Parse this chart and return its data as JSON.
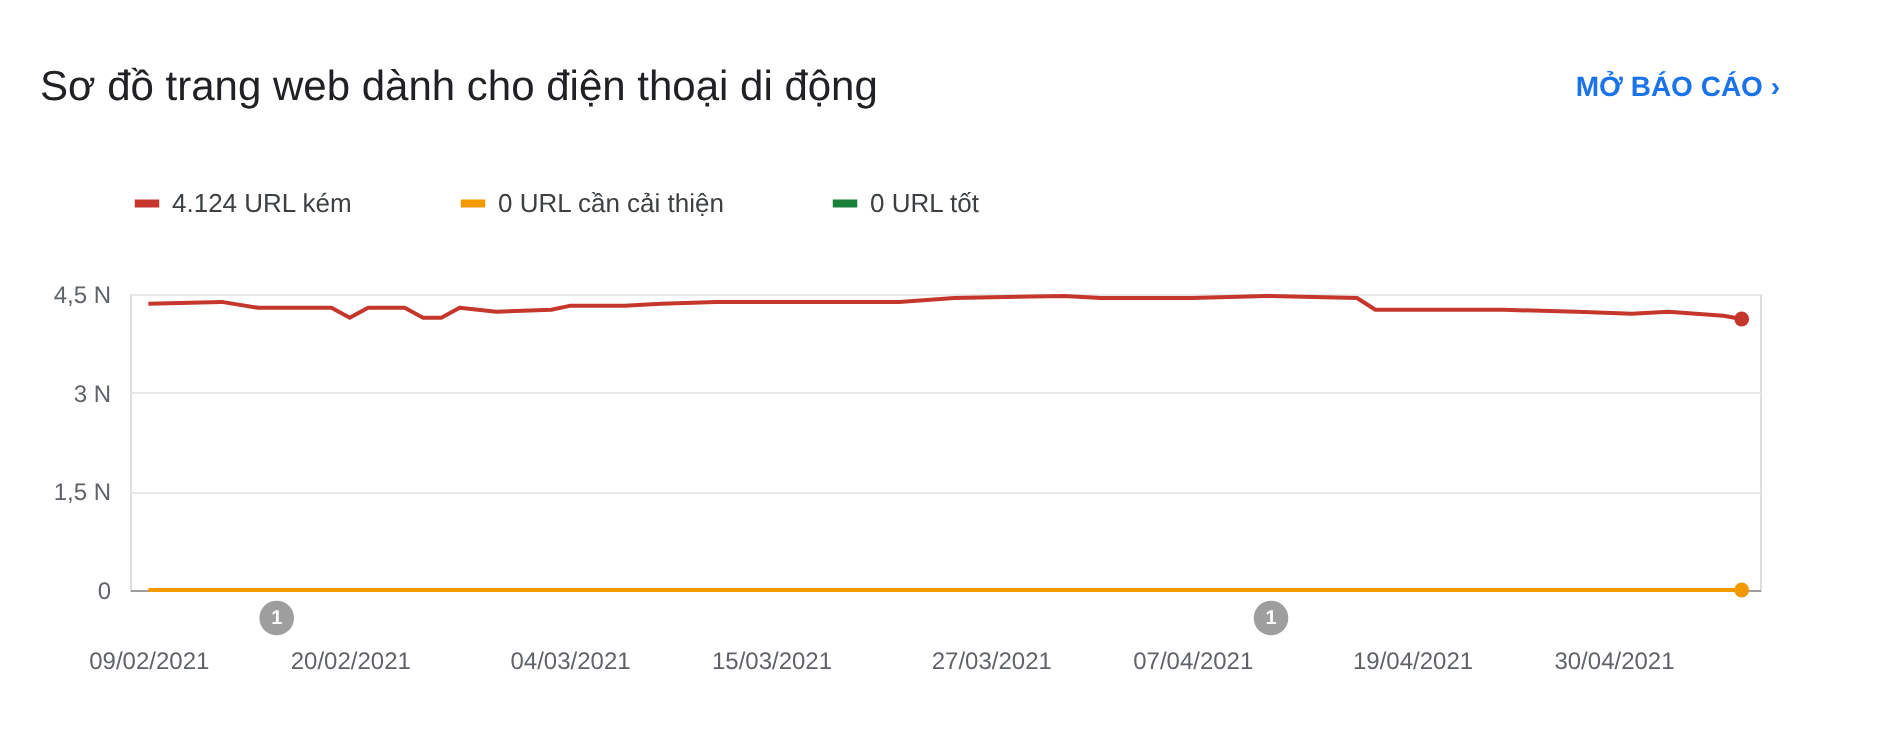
{
  "chart_data": {
    "type": "line",
    "title": "Sơ đồ trang web dành cho điện thoại di động",
    "annotations": [
      "1",
      "1",
      "MỞ BÁO CÁO ›"
    ],
    "x": [
      "2021-02-09",
      "2021-02-13",
      "2021-02-15",
      "2021-02-17",
      "2021-02-19",
      "2021-02-20",
      "2021-02-21",
      "2021-02-23",
      "2021-02-24",
      "2021-02-25",
      "2021-02-26",
      "2021-02-28",
      "2021-03-03",
      "2021-03-04",
      "2021-03-07",
      "2021-03-09",
      "2021-03-12",
      "2021-03-16",
      "2021-03-20",
      "2021-03-22",
      "2021-03-25",
      "2021-03-31",
      "2021-04-02",
      "2021-04-07",
      "2021-04-11",
      "2021-04-16",
      "2021-04-17",
      "2021-04-20",
      "2021-04-24",
      "2021-04-28",
      "2021-05-01",
      "2021-05-03",
      "2021-05-06",
      "2021-05-07"
    ],
    "series": [
      {
        "name": "4.124 URL kém",
        "color": "#c5372c",
        "values": [
          4.35,
          4.38,
          4.29,
          4.29,
          4.29,
          4.14,
          4.29,
          4.29,
          4.14,
          4.14,
          4.29,
          4.23,
          4.26,
          4.32,
          4.32,
          4.35,
          4.38,
          4.38,
          4.38,
          4.38,
          4.44,
          4.47,
          4.44,
          4.44,
          4.47,
          4.44,
          4.26,
          4.26,
          4.26,
          4.23,
          4.2,
          4.23,
          4.17,
          4.12
        ]
      },
      {
        "name": "0 URL cần cải thiện",
        "color": "#f29900",
        "values": [
          0,
          0,
          0,
          0,
          0,
          0,
          0,
          0,
          0,
          0,
          0,
          0,
          0,
          0,
          0,
          0,
          0,
          0,
          0,
          0,
          0,
          0,
          0,
          0,
          0,
          0,
          0,
          0,
          0,
          0,
          0,
          0,
          0,
          0
        ]
      },
      {
        "name": "0 URL tốt",
        "color": "#188038",
        "values": [
          null,
          null,
          null,
          null,
          null,
          null,
          null,
          null,
          null,
          null,
          null,
          null,
          null,
          null,
          null,
          null,
          null,
          null,
          null,
          null,
          null,
          null,
          null,
          null,
          null,
          null,
          null,
          null,
          null,
          null,
          null,
          null,
          null,
          null
        ]
      }
    ],
    "xlim": [
      "2021-02-08",
      "2021-05-08"
    ],
    "xticks": [
      {
        "value": "2021-02-09",
        "label": "09/02/2021"
      },
      {
        "value": "2021-02-20",
        "label": "20/02/2021"
      },
      {
        "value": "2021-03-04",
        "label": "04/03/2021"
      },
      {
        "value": "2021-03-15",
        "label": "15/03/2021"
      },
      {
        "value": "2021-03-27",
        "label": "27/03/2021"
      },
      {
        "value": "2021-04-07",
        "label": "07/04/2021"
      },
      {
        "value": "2021-04-19",
        "label": "19/04/2021"
      },
      {
        "value": "2021-04-30",
        "label": "30/04/2021"
      }
    ],
    "ylim": [
      0,
      4.5
    ],
    "yticks": [
      {
        "value": 0,
        "label": "0"
      },
      {
        "value": 1.5,
        "label": "1,5 N"
      },
      {
        "value": 3,
        "label": "3 N"
      },
      {
        "value": 4.5,
        "label": "4,5 N"
      }
    ],
    "grid": "y",
    "legend": "top left",
    "line_style": "solid"
  }
}
